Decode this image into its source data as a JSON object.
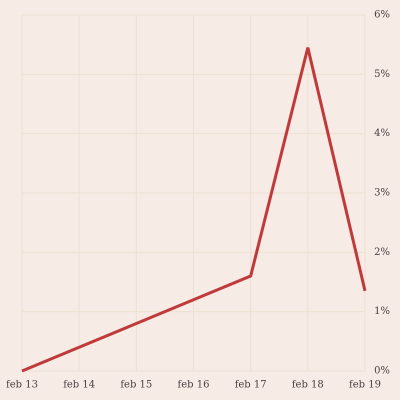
{
  "chart_data": {
    "type": "line",
    "categories": [
      "feb 13",
      "feb 14",
      "feb 15",
      "feb 16",
      "feb 17",
      "feb 18",
      "feb 19"
    ],
    "series": [
      {
        "color": "#c0393b",
        "values": [
          0,
          0.4,
          0.8,
          1.2,
          1.6,
          5.45,
          1.35
        ]
      }
    ],
    "ylim": [
      0,
      6
    ],
    "yticks": [
      {
        "value": 0,
        "label": "0%"
      },
      {
        "value": 1,
        "label": "1%"
      },
      {
        "value": 2,
        "label": "2%"
      },
      {
        "value": 3,
        "label": "3%"
      },
      {
        "value": 4,
        "label": "4%"
      },
      {
        "value": 5,
        "label": "5%"
      },
      {
        "value": 6,
        "label": "6%"
      }
    ],
    "grid": true
  }
}
